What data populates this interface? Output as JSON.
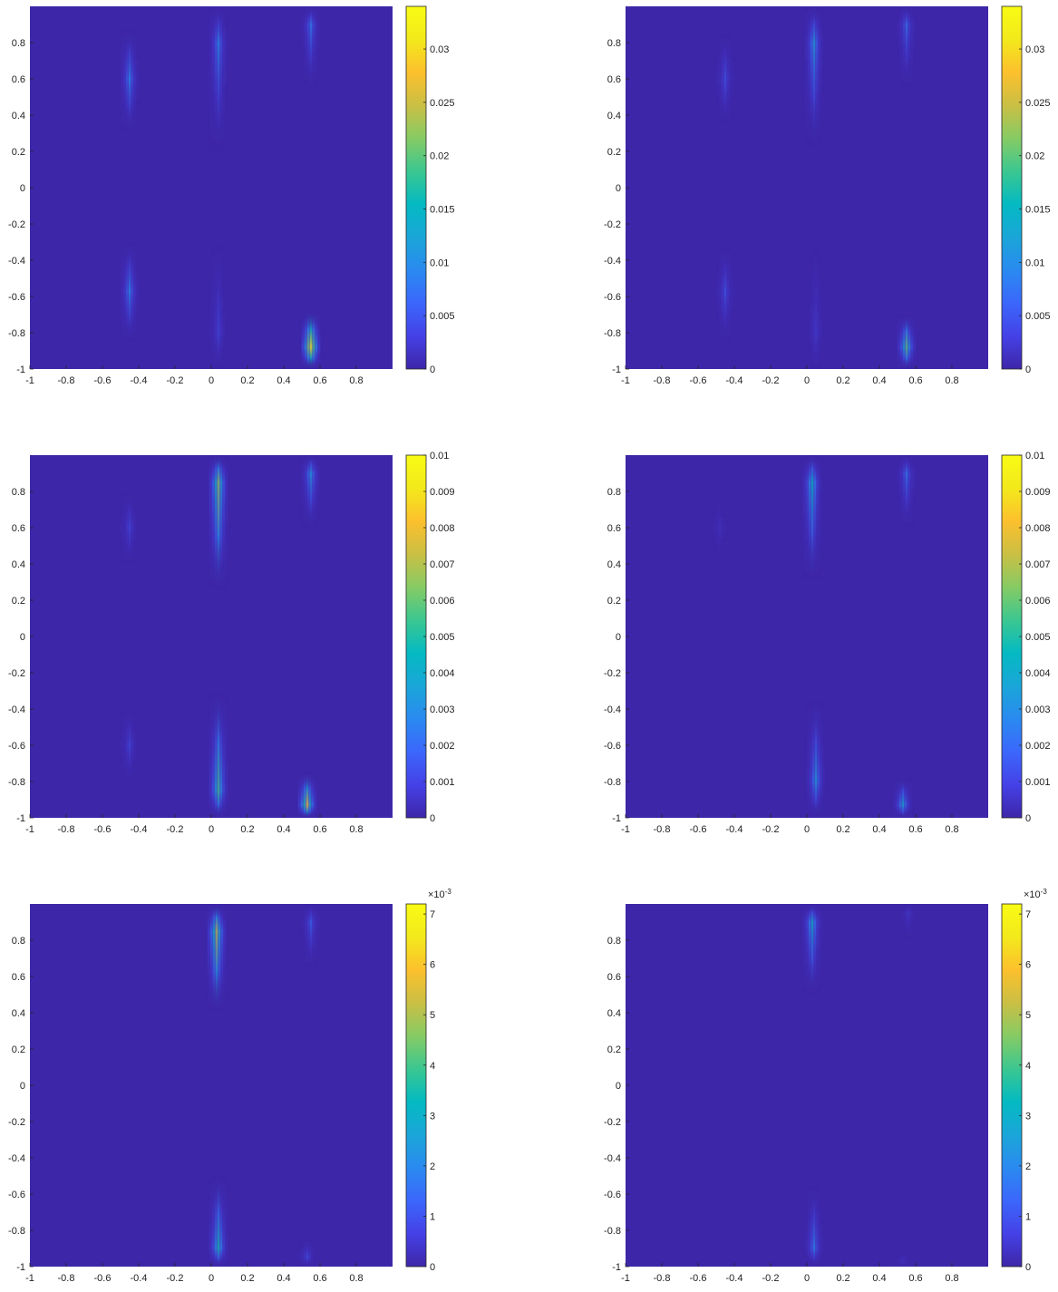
{
  "chart_data": [
    {
      "type": "heatmap",
      "xlim": [
        -1,
        1
      ],
      "ylim": [
        -1,
        1
      ],
      "x_ticks": [
        "-1",
        "-0.8",
        "-0.6",
        "-0.4",
        "-0.2",
        "0",
        "0.2",
        "0.4",
        "0.6",
        "0.8"
      ],
      "y_ticks": [
        "0.8",
        "0.6",
        "0.4",
        "0.2",
        "0",
        "-0.2",
        "-0.4",
        "-0.6",
        "-0.8",
        "-1"
      ],
      "colorbar": {
        "min": 0,
        "max": 0.034,
        "ticks": [
          "0.03",
          "0.025",
          "0.02",
          "0.015",
          "0.01",
          "0.005",
          "0"
        ],
        "tick_values": [
          0.03,
          0.025,
          0.02,
          0.015,
          0.01,
          0.005,
          0
        ],
        "exponent": ""
      },
      "features": [
        {
          "x": -0.45,
          "y_from": 0.3,
          "y_to": 0.88,
          "peak": 0.01,
          "peak_y": 0.6
        },
        {
          "x": 0.04,
          "y_from": 0.2,
          "y_to": 1.0,
          "peak": 0.01,
          "peak_y": 0.8
        },
        {
          "x": 0.55,
          "y_from": 0.55,
          "y_to": 1.0,
          "peak": 0.009,
          "peak_y": 0.9
        },
        {
          "x": -0.45,
          "y_from": -0.85,
          "y_to": -0.3,
          "peak": 0.01,
          "peak_y": -0.57
        },
        {
          "x": 0.04,
          "y_from": -1.0,
          "y_to": -0.3,
          "peak": 0.005,
          "peak_y": -0.8
        },
        {
          "x": 0.55,
          "y_from": -1.0,
          "y_to": -0.68,
          "peak": 0.034,
          "peak_y": -0.88
        }
      ]
    },
    {
      "type": "heatmap",
      "xlim": [
        -1,
        1
      ],
      "ylim": [
        -1,
        1
      ],
      "x_ticks": [
        "-1",
        "-0.8",
        "-0.6",
        "-0.4",
        "-0.2",
        "0",
        "0.2",
        "0.4",
        "0.6",
        "0.8"
      ],
      "y_ticks": [
        "0.8",
        "0.6",
        "0.4",
        "0.2",
        "0",
        "-0.2",
        "-0.4",
        "-0.6",
        "-0.8",
        "-1"
      ],
      "colorbar": {
        "min": 0,
        "max": 0.034,
        "ticks": [
          "0.03",
          "0.025",
          "0.02",
          "0.015",
          "0.01",
          "0.005",
          "0"
        ],
        "tick_values": [
          0.03,
          0.025,
          0.02,
          0.015,
          0.01,
          0.005,
          0
        ],
        "exponent": ""
      },
      "features": [
        {
          "x": -0.45,
          "y_from": 0.35,
          "y_to": 0.85,
          "peak": 0.006,
          "peak_y": 0.6
        },
        {
          "x": 0.04,
          "y_from": 0.22,
          "y_to": 1.0,
          "peak": 0.012,
          "peak_y": 0.8
        },
        {
          "x": 0.55,
          "y_from": 0.55,
          "y_to": 1.0,
          "peak": 0.008,
          "peak_y": 0.9
        },
        {
          "x": -0.45,
          "y_from": -0.85,
          "y_to": -0.33,
          "peak": 0.006,
          "peak_y": -0.57
        },
        {
          "x": 0.05,
          "y_from": -1.0,
          "y_to": -0.33,
          "peak": 0.004,
          "peak_y": -0.8
        },
        {
          "x": 0.55,
          "y_from": -1.0,
          "y_to": -0.7,
          "peak": 0.02,
          "peak_y": -0.88
        }
      ]
    },
    {
      "type": "heatmap",
      "xlim": [
        -1,
        1
      ],
      "ylim": [
        -1,
        1
      ],
      "x_ticks": [
        "-1",
        "-0.8",
        "-0.6",
        "-0.4",
        "-0.2",
        "0",
        "0.2",
        "0.4",
        "0.6",
        "0.8"
      ],
      "y_ticks": [
        "0.8",
        "0.6",
        "0.4",
        "0.2",
        "0",
        "-0.2",
        "-0.4",
        "-0.6",
        "-0.8",
        "-1"
      ],
      "colorbar": {
        "min": 0,
        "max": 0.01,
        "ticks": [
          "0.01",
          "0.009",
          "0.008",
          "0.007",
          "0.006",
          "0.005",
          "0.004",
          "0.003",
          "0.002",
          "0.001",
          "0"
        ],
        "tick_values": [
          0.01,
          0.009,
          0.008,
          0.007,
          0.006,
          0.005,
          0.004,
          0.003,
          0.002,
          0.001,
          0
        ],
        "exponent": ""
      },
      "features": [
        {
          "x": -0.45,
          "y_from": 0.4,
          "y_to": 0.8,
          "peak": 0.0015,
          "peak_y": 0.6
        },
        {
          "x": 0.04,
          "y_from": 0.25,
          "y_to": 1.0,
          "peak": 0.0065,
          "peak_y": 0.85
        },
        {
          "x": 0.55,
          "y_from": 0.6,
          "y_to": 1.0,
          "peak": 0.0035,
          "peak_y": 0.9
        },
        {
          "x": -0.45,
          "y_from": -0.8,
          "y_to": -0.4,
          "peak": 0.0015,
          "peak_y": -0.6
        },
        {
          "x": 0.04,
          "y_from": -1.0,
          "y_to": -0.3,
          "peak": 0.0055,
          "peak_y": -0.85
        },
        {
          "x": 0.53,
          "y_from": -1.0,
          "y_to": -0.75,
          "peak": 0.008,
          "peak_y": -0.93
        }
      ]
    },
    {
      "type": "heatmap",
      "xlim": [
        -1,
        1
      ],
      "ylim": [
        -1,
        1
      ],
      "x_ticks": [
        "-1",
        "-0.8",
        "-0.6",
        "-0.4",
        "-0.2",
        "0",
        "0.2",
        "0.4",
        "0.6",
        "0.8"
      ],
      "y_ticks": [
        "0.8",
        "0.6",
        "0.4",
        "0.2",
        "0",
        "-0.2",
        "-0.4",
        "-0.6",
        "-0.8",
        "-1"
      ],
      "colorbar": {
        "min": 0,
        "max": 0.01,
        "ticks": [
          "0.01",
          "0.009",
          "0.008",
          "0.007",
          "0.006",
          "0.005",
          "0.004",
          "0.003",
          "0.002",
          "0.001",
          "0"
        ],
        "tick_values": [
          0.01,
          0.009,
          0.008,
          0.007,
          0.006,
          0.005,
          0.004,
          0.003,
          0.002,
          0.001,
          0
        ],
        "exponent": ""
      },
      "features": [
        {
          "x": -0.48,
          "y_from": 0.45,
          "y_to": 0.75,
          "peak": 0.0008,
          "peak_y": 0.6
        },
        {
          "x": 0.03,
          "y_from": 0.3,
          "y_to": 1.0,
          "peak": 0.0045,
          "peak_y": 0.85
        },
        {
          "x": 0.55,
          "y_from": 0.6,
          "y_to": 1.0,
          "peak": 0.0025,
          "peak_y": 0.9
        },
        {
          "x": 0.05,
          "y_from": -1.0,
          "y_to": -0.35,
          "peak": 0.0035,
          "peak_y": -0.8
        },
        {
          "x": 0.53,
          "y_from": -1.0,
          "y_to": -0.78,
          "peak": 0.004,
          "peak_y": -0.93
        }
      ]
    },
    {
      "type": "heatmap",
      "xlim": [
        -1,
        1
      ],
      "ylim": [
        -1,
        1
      ],
      "x_ticks": [
        "-1",
        "-0.8",
        "-0.6",
        "-0.4",
        "-0.2",
        "0",
        "0.2",
        "0.4",
        "0.6",
        "0.8"
      ],
      "y_ticks": [
        "0.8",
        "0.6",
        "0.4",
        "0.2",
        "0",
        "-0.2",
        "-0.4",
        "-0.6",
        "-0.8",
        "-1"
      ],
      "colorbar": {
        "min": 0,
        "max": 0.0072,
        "ticks": [
          "7",
          "6",
          "5",
          "4",
          "3",
          "2",
          "1",
          "0"
        ],
        "tick_values": [
          0.007,
          0.006,
          0.005,
          0.004,
          0.003,
          0.002,
          0.001,
          0
        ],
        "exponent": "×10-3"
      },
      "features": [
        {
          "x": 0.03,
          "y_from": 0.4,
          "y_to": 1.0,
          "peak": 0.005,
          "peak_y": 0.85
        },
        {
          "x": 0.55,
          "y_from": 0.65,
          "y_to": 1.0,
          "peak": 0.0015,
          "peak_y": 0.9
        },
        {
          "x": 0.04,
          "y_from": -1.0,
          "y_to": -0.5,
          "peak": 0.0035,
          "peak_y": -0.9
        },
        {
          "x": 0.53,
          "y_from": -1.0,
          "y_to": -0.85,
          "peak": 0.0012,
          "peak_y": -0.95
        }
      ]
    },
    {
      "type": "heatmap",
      "xlim": [
        -1,
        1
      ],
      "ylim": [
        -1,
        1
      ],
      "x_ticks": [
        "-1",
        "-0.8",
        "-0.6",
        "-0.4",
        "-0.2",
        "0",
        "0.2",
        "0.4",
        "0.6",
        "0.8"
      ],
      "y_ticks": [
        "0.8",
        "0.6",
        "0.4",
        "0.2",
        "0",
        "-0.2",
        "-0.4",
        "-0.6",
        "-0.8",
        "-1"
      ],
      "colorbar": {
        "min": 0,
        "max": 0.0072,
        "ticks": [
          "7",
          "6",
          "5",
          "4",
          "3",
          "2",
          "1",
          "0"
        ],
        "tick_values": [
          0.007,
          0.006,
          0.005,
          0.004,
          0.003,
          0.002,
          0.001,
          0
        ],
        "exponent": "×10-3"
      },
      "features": [
        {
          "x": 0.03,
          "y_from": 0.5,
          "y_to": 1.0,
          "peak": 0.003,
          "peak_y": 0.9
        },
        {
          "x": 0.56,
          "y_from": 0.8,
          "y_to": 1.0,
          "peak": 0.0007,
          "peak_y": 0.95
        },
        {
          "x": 0.04,
          "y_from": -1.0,
          "y_to": -0.55,
          "peak": 0.002,
          "peak_y": -0.9
        },
        {
          "x": 0.53,
          "y_from": -1.0,
          "y_to": -0.92,
          "peak": 0.0006,
          "peak_y": -0.97
        }
      ]
    }
  ],
  "colors": {
    "background": "#3D26A8",
    "colormap": [
      "#3E26A8",
      "#4541E7",
      "#3B67FC",
      "#2A8AF0",
      "#1AA6D8",
      "#04BAC2",
      "#3BC790",
      "#86CB64",
      "#CABF44",
      "#FCC02D",
      "#F3E91B",
      "#F9FB14"
    ]
  }
}
